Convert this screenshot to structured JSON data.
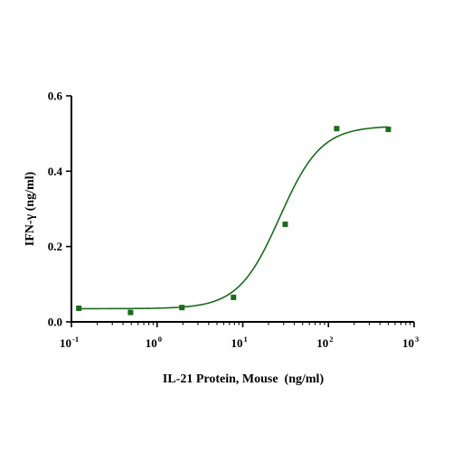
{
  "chart_data": {
    "type": "scatter",
    "xscale": "log",
    "xlim": [
      0.1,
      1000
    ],
    "ylim": [
      0,
      0.6
    ],
    "grid": false,
    "xlabel": "IL-21 Protein, Mouse  (ng/ml)",
    "ylabel": "IFN-γ (ng/ml)",
    "x_ticks": [
      {
        "base": "10",
        "exp": "-1",
        "value": 0.1
      },
      {
        "base": "10",
        "exp": "0",
        "value": 1
      },
      {
        "base": "10",
        "exp": "1",
        "value": 10
      },
      {
        "base": "10",
        "exp": "2",
        "value": 100
      },
      {
        "base": "10",
        "exp": "3",
        "value": 1000
      }
    ],
    "y_ticks": [
      {
        "label": "0.0",
        "value": 0.0
      },
      {
        "label": "0.2",
        "value": 0.2
      },
      {
        "label": "0.4",
        "value": 0.4
      },
      {
        "label": "0.6",
        "value": 0.6
      }
    ],
    "series": [
      {
        "color": "#1a6b1a",
        "marker": "square",
        "points": [
          {
            "x": 0.122,
            "y": 0.036
          },
          {
            "x": 0.49,
            "y": 0.025
          },
          {
            "x": 1.95,
            "y": 0.038
          },
          {
            "x": 7.8,
            "y": 0.065
          },
          {
            "x": 31.3,
            "y": 0.259
          },
          {
            "x": 125,
            "y": 0.513
          },
          {
            "x": 500,
            "y": 0.511
          }
        ],
        "fit": {
          "model": "4PL",
          "bottom": 0.035,
          "top": 0.52,
          "ec50": 27,
          "hill": 1.8,
          "x_range": [
            0.122,
            500
          ]
        }
      }
    ]
  }
}
